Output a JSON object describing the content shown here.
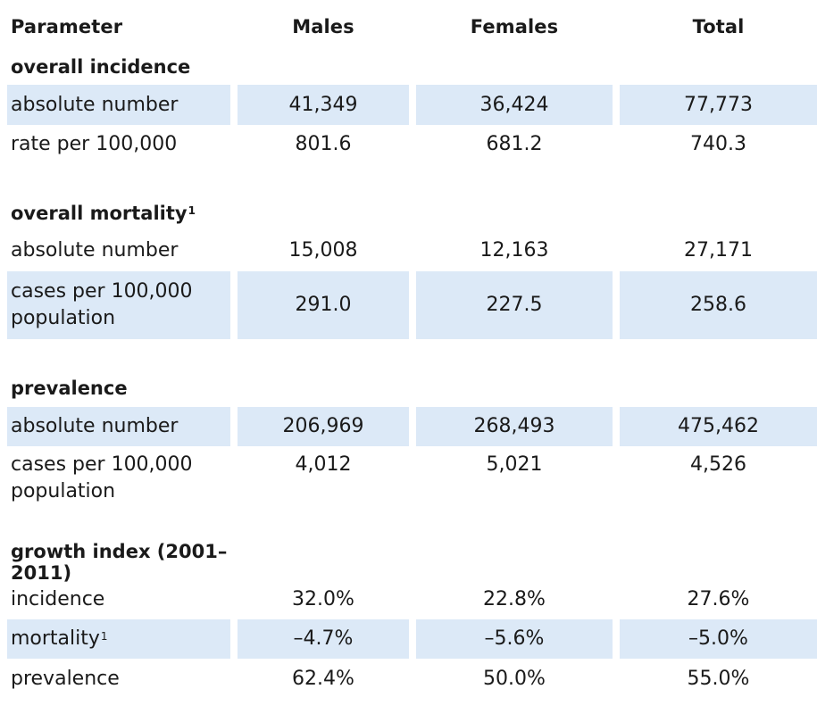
{
  "header": {
    "parameter": "Parameter",
    "males": "Males",
    "females": "Females",
    "total": "Total"
  },
  "sections": {
    "incidence": {
      "title": "overall incidence",
      "rows": [
        {
          "label": "absolute number",
          "males": "41,349",
          "females": "36,424",
          "total": "77,773"
        },
        {
          "label": "rate per 100,000",
          "males": "801.6",
          "females": "681.2",
          "total": "740.3"
        }
      ]
    },
    "mortality": {
      "title": "overall mortality",
      "footnote": "1",
      "rows": [
        {
          "label": "absolute number",
          "males": "15,008",
          "females": "12,163",
          "total": "27,171"
        },
        {
          "label_line1": "cases per 100,000",
          "label_line2": "population",
          "males": "291.0",
          "females": "227.5",
          "total": "258.6"
        }
      ]
    },
    "prevalence": {
      "title": "prevalence",
      "rows": [
        {
          "label": "absolute number",
          "males": "206,969",
          "females": "268,493",
          "total": "475,462"
        },
        {
          "label_line1": "cases per 100,000",
          "label_line2": "population",
          "males": "4,012",
          "females": "5,021",
          "total": "4,526"
        }
      ]
    },
    "growth": {
      "title": "growth index (2001–2011)",
      "rows": [
        {
          "label": "incidence",
          "males": "32.0%",
          "females": "22.8%",
          "total": "27.6%"
        },
        {
          "label": "mortality",
          "footnote": "1",
          "males": "–4.7%",
          "females": "–5.6%",
          "total": "–5.0%"
        },
        {
          "label": "prevalence",
          "males": "62.4%",
          "females": "50.0%",
          "total": "55.0%"
        }
      ]
    }
  },
  "colors": {
    "row_shade": "#dce9f7",
    "text": "#1a1a1a"
  }
}
